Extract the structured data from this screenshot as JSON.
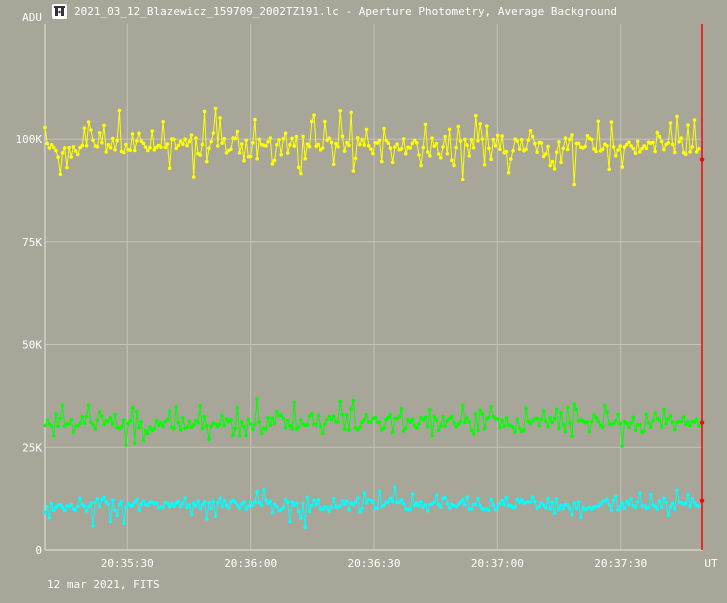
{
  "window": {
    "title": "2021_03_12_Blazewicz_159709_2002TZ191.lc - Aperture Photometry, Average Background",
    "icon": "telescope-app-icon"
  },
  "footer": {
    "text": "12 mar 2021, FITS"
  },
  "colors": {
    "background": "#a8a699",
    "grid": "#c4c2b8",
    "yellow": "#ffff00",
    "green": "#00ff00",
    "cyan": "#00ffff",
    "cursor": "#ff0000",
    "marker": "#ff0000"
  },
  "chart_data": {
    "type": "line",
    "title": "",
    "ylabel": "ADU",
    "xlabel": "UT",
    "ylim": [
      0,
      128000
    ],
    "xlim": [
      "20:35:10",
      "20:37:50"
    ],
    "y_ticks": [
      {
        "value": 0,
        "label": "0"
      },
      {
        "value": 25000,
        "label": "25K"
      },
      {
        "value": 50000,
        "label": "50K"
      },
      {
        "value": 75000,
        "label": "75K"
      },
      {
        "value": 100000,
        "label": "100K"
      }
    ],
    "x_ticks": [
      "20:35:30",
      "20:36:00",
      "20:36:30",
      "20:37:00",
      "20:37:30"
    ],
    "cursor": "20:37:50",
    "series": [
      {
        "color": "yellow",
        "points": 300,
        "mean": 98500,
        "noise": 2500,
        "spikes": 0.35,
        "spike_amp": 7000,
        "seed": 11
      },
      {
        "color": "green",
        "points": 300,
        "mean": 31000,
        "noise": 2200,
        "spikes": 0.18,
        "spike_amp": 5000,
        "seed": 23
      },
      {
        "color": "cyan",
        "points": 300,
        "mean": 11000,
        "noise": 1600,
        "spikes": 0.15,
        "spike_amp": 4000,
        "seed": 37
      }
    ],
    "end_markers": [
      {
        "series": "yellow",
        "value": 95000
      },
      {
        "series": "green",
        "value": 31000
      },
      {
        "series": "cyan",
        "value": 12000
      }
    ]
  }
}
